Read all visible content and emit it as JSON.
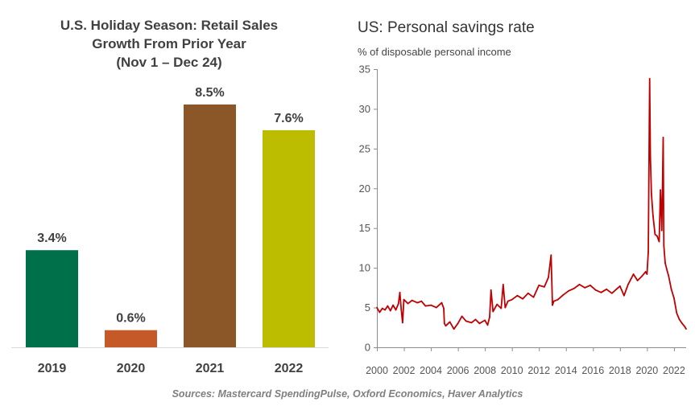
{
  "left": {
    "title_lines": [
      "U.S. Holiday Season: Retail Sales",
      "Growth From Prior Year",
      "(Nov 1 – Dec 24)"
    ]
  },
  "right": {
    "title": "US: Personal savings rate",
    "subtitle": "% of disposable personal income"
  },
  "source": "Sources: Mastercard SpendingPulse, Oxford Economics, Haver Analytics",
  "chart_data": [
    {
      "type": "bar",
      "title": "U.S. Holiday Season: Retail Sales Growth From Prior Year (Nov 1 – Dec 24)",
      "categories": [
        "2019",
        "2020",
        "2021",
        "2022"
      ],
      "values": [
        3.4,
        0.6,
        8.5,
        7.6
      ],
      "labels": [
        "3.4%",
        "0.6%",
        "8.5%",
        "7.6%"
      ],
      "colors": [
        "#00704a",
        "#c55a28",
        "#8b5628",
        "#bcbd00"
      ],
      "ylim": [
        0,
        9
      ],
      "grid": false,
      "legend": "none"
    },
    {
      "type": "line",
      "title": "US: Personal savings rate",
      "ylabel": "% of disposable personal income",
      "xlim": [
        2000,
        2022.9
      ],
      "ylim": [
        0,
        35
      ],
      "xticks": [
        2000,
        2002,
        2004,
        2006,
        2008,
        2010,
        2012,
        2014,
        2016,
        2018,
        2020,
        2022
      ],
      "yticks": [
        0,
        5,
        10,
        15,
        20,
        25,
        30,
        35
      ],
      "grid": false,
      "color": "#c00000",
      "series": [
        {
          "x": [
            2000.0,
            2000.2,
            2000.4,
            2000.6,
            2000.8,
            2001.0,
            2001.2,
            2001.4,
            2001.6,
            2001.7,
            2001.8,
            2001.9,
            2002.0,
            2002.3,
            2002.6,
            2003.0,
            2003.3,
            2003.6,
            2004.0,
            2004.4,
            2004.8,
            2004.95,
            2005.0,
            2005.1,
            2005.4,
            2005.7,
            2006.0,
            2006.3,
            2006.6,
            2007.0,
            2007.3,
            2007.6,
            2008.0,
            2008.2,
            2008.35,
            2008.45,
            2008.6,
            2008.9,
            2009.2,
            2009.35,
            2009.5,
            2009.7,
            2010.0,
            2010.4,
            2010.8,
            2011.2,
            2011.6,
            2012.0,
            2012.4,
            2012.7,
            2012.9,
            2013.0,
            2013.1,
            2013.4,
            2013.8,
            2014.2,
            2014.6,
            2015.0,
            2015.4,
            2015.8,
            2016.2,
            2016.6,
            2017.0,
            2017.4,
            2017.8,
            2018.0,
            2018.3,
            2018.6,
            2019.0,
            2019.3,
            2019.6,
            2019.9,
            2020.0,
            2020.1,
            2020.2,
            2020.25,
            2020.33,
            2020.45,
            2020.6,
            2020.75,
            2020.9,
            2021.0,
            2021.1,
            2021.2,
            2021.25,
            2021.35,
            2021.5,
            2021.6,
            2021.8,
            2022.0,
            2022.2,
            2022.4,
            2022.6,
            2022.8,
            2022.9
          ],
          "y": [
            5.0,
            4.4,
            4.9,
            4.7,
            5.2,
            4.6,
            5.3,
            4.7,
            5.5,
            6.9,
            4.8,
            3.1,
            6.0,
            5.5,
            5.9,
            5.6,
            5.8,
            5.2,
            5.3,
            5.0,
            5.6,
            4.9,
            3.0,
            2.7,
            3.2,
            2.3,
            3.0,
            3.9,
            3.3,
            3.1,
            3.5,
            3.0,
            3.4,
            2.8,
            3.8,
            7.2,
            4.5,
            5.4,
            4.9,
            7.9,
            5.0,
            5.8,
            6.0,
            6.5,
            6.1,
            6.8,
            6.3,
            7.8,
            7.6,
            8.8,
            11.6,
            5.3,
            5.8,
            6.0,
            6.6,
            7.1,
            7.4,
            7.9,
            7.5,
            7.8,
            7.2,
            6.9,
            7.3,
            6.8,
            7.4,
            7.7,
            6.5,
            7.9,
            9.2,
            8.4,
            8.9,
            9.5,
            9.2,
            12.0,
            33.8,
            24.0,
            19.3,
            16.5,
            14.2,
            14.0,
            13.3,
            19.8,
            14.7,
            26.4,
            12.8,
            10.6,
            9.6,
            9.0,
            7.3,
            6.2,
            4.3,
            3.5,
            3.0,
            2.6,
            2.3
          ]
        }
      ]
    }
  ]
}
